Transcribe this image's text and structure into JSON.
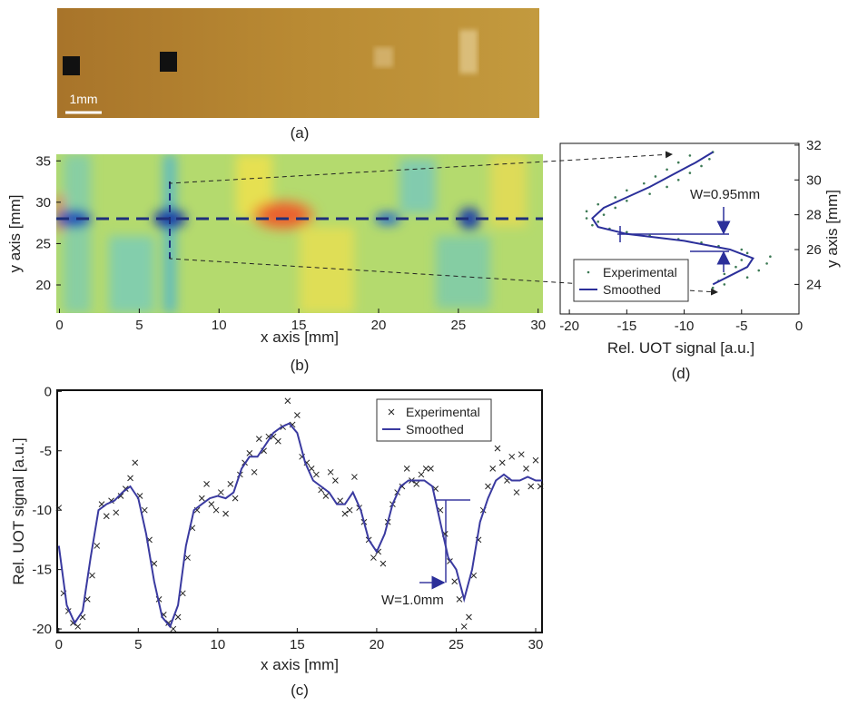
{
  "photo": {
    "scale_label": "1mm",
    "caption": "(a)"
  },
  "chart_data": [
    {
      "type": "heatmap",
      "caption": "(b)",
      "xlabel": "x axis [mm]",
      "ylabel": "y axis [mm]",
      "xlim": [
        -0.2,
        30.3
      ],
      "xticks": [
        0,
        5,
        10,
        15,
        20,
        25,
        30
      ],
      "ylim": [
        16.6,
        35.8
      ],
      "yticks": [
        20,
        25,
        30,
        35
      ]
    },
    {
      "type": "line",
      "orientation": "horizontal",
      "caption": "(d)",
      "xlabel": "Rel. UOT signal [a.u.]",
      "ylabel": "y axis [mm]",
      "annotation": "W=0.95mm",
      "legend": "lower left",
      "xlim": [
        -20.8,
        0
      ],
      "xticks": [
        -20,
        -15,
        -10,
        -5,
        0
      ],
      "ylim": [
        22.3,
        32.1
      ],
      "yticks": [
        24,
        26,
        28,
        30,
        32
      ],
      "series": [
        {
          "name": "Experimental",
          "color": "#3d7a55",
          "mode": "markers",
          "marker": "dot",
          "y": [
            31.6,
            31.4,
            31.2,
            31.0,
            30.8,
            30.6,
            30.4,
            30.2,
            30.0,
            29.8,
            29.6,
            29.4,
            29.2,
            29.0,
            28.8,
            28.6,
            28.4,
            28.2,
            28.0,
            27.8,
            27.6,
            27.4,
            27.2,
            27.0,
            26.8,
            26.6,
            26.4,
            26.2,
            26.0,
            25.8,
            25.6,
            25.4,
            25.2,
            25.0,
            24.8,
            24.6,
            24.4,
            24.2,
            24.0,
            23.8
          ],
          "values": [
            -7.5,
            -9.5,
            -7.8,
            -10.5,
            -8.5,
            -11.5,
            -9.5,
            -12.5,
            -10.5,
            -13.5,
            -11.5,
            -15,
            -13,
            -16,
            -15,
            -17.5,
            -16,
            -18.5,
            -17,
            -18.5,
            -17.5,
            -18,
            -16.5,
            -15,
            -13,
            -10.5,
            -8.5,
            -7,
            -5,
            -4.5,
            -2.5,
            -5,
            -2.8,
            -5.5,
            -3.5,
            -6.5,
            -4.5,
            -7,
            -6.5,
            -7.5
          ]
        },
        {
          "name": "Smoothed",
          "color": "#2b2f9a",
          "mode": "line",
          "y": [
            31.6,
            31,
            30.3,
            29.6,
            29,
            28.4,
            27.8,
            27.3,
            26.9,
            26.5,
            26,
            25.5,
            25,
            24.5,
            24
          ],
          "values": [
            -7.5,
            -9,
            -11,
            -13,
            -15,
            -17,
            -18,
            -17.5,
            -15,
            -10,
            -6,
            -4,
            -4.5,
            -6,
            -7.5
          ]
        }
      ]
    },
    {
      "type": "line",
      "caption": "(c)",
      "xlabel": "x axis [mm]",
      "ylabel": "Rel. UOT signal [a.u.]",
      "annotation": "W=1.0mm",
      "legend": "upper right",
      "xlim": [
        -0.1,
        30.4
      ],
      "xticks": [
        0,
        5,
        10,
        15,
        20,
        25,
        30
      ],
      "ylim": [
        -20.3,
        0.1
      ],
      "yticks": [
        -20,
        -15,
        -10,
        -5,
        0
      ],
      "series": [
        {
          "name": "Experimental",
          "color": "#222222",
          "mode": "markers",
          "marker": "cross",
          "x": [
            0,
            0.3,
            0.6,
            0.9,
            1.2,
            1.5,
            1.8,
            2.1,
            2.4,
            2.7,
            3,
            3.3,
            3.6,
            3.9,
            4.2,
            4.5,
            4.8,
            5.1,
            5.4,
            5.7,
            6,
            6.3,
            6.6,
            6.9,
            7.2,
            7.5,
            7.8,
            8.1,
            8.4,
            8.7,
            9,
            9.3,
            9.6,
            9.9,
            10.2,
            10.5,
            10.8,
            11.1,
            11.4,
            11.7,
            12,
            12.3,
            12.6,
            12.9,
            13.2,
            13.5,
            13.8,
            14.1,
            14.4,
            14.7,
            15,
            15.3,
            15.6,
            15.9,
            16.2,
            16.5,
            16.8,
            17.1,
            17.4,
            17.7,
            18,
            18.3,
            18.6,
            18.9,
            19.2,
            19.5,
            19.8,
            20.1,
            20.4,
            20.7,
            21,
            21.3,
            21.6,
            21.9,
            22.2,
            22.5,
            22.8,
            23.1,
            23.4,
            23.7,
            24,
            24.3,
            24.6,
            24.9,
            25.2,
            25.5,
            25.8,
            26.1,
            26.4,
            26.7,
            27,
            27.3,
            27.6,
            27.9,
            28.2,
            28.5,
            28.8,
            29.1,
            29.4,
            29.7,
            30,
            30.3
          ],
          "values": [
            -9.8,
            -17,
            -18.5,
            -19.5,
            -19.8,
            -19,
            -17.5,
            -15.5,
            -13,
            -9.5,
            -10.5,
            -9.2,
            -10.2,
            -8.8,
            -8.2,
            -7.3,
            -6,
            -8.8,
            -10,
            -12.5,
            -14.5,
            -17.5,
            -18.8,
            -19.5,
            -20,
            -19,
            -17,
            -14,
            -11.5,
            -10,
            -9,
            -7.8,
            -9.5,
            -10,
            -8.5,
            -10.3,
            -7.8,
            -9,
            -7,
            -6,
            -5.2,
            -6.8,
            -4,
            -5,
            -3.8,
            -3.8,
            -4.2,
            -3,
            -0.8,
            -2.8,
            -2,
            -5.5,
            -6,
            -6.5,
            -7,
            -8.3,
            -8.8,
            -6.8,
            -7.5,
            -9.2,
            -10.3,
            -10,
            -7.2,
            -9.8,
            -11,
            -12.5,
            -14,
            -13.5,
            -14.5,
            -11,
            -9.5,
            -8.5,
            -8,
            -6.5,
            -7.5,
            -7.8,
            -7,
            -6.5,
            -6.5,
            -8.2,
            -10,
            -12,
            -14.3,
            -16,
            -17.5,
            -19.8,
            -19,
            -15.5,
            -12.5,
            -10,
            -8,
            -6.5,
            -4.8,
            -6,
            -7.5,
            -5.5,
            -8.5,
            -5.3,
            -6.5,
            -8,
            -5.8,
            -8
          ]
        },
        {
          "name": "Smoothed",
          "color": "#3a3aa0",
          "mode": "line",
          "x": [
            0,
            0.5,
            1,
            1.5,
            2,
            2.5,
            3,
            3.5,
            4,
            4.5,
            5,
            5.5,
            6,
            6.5,
            7,
            7.5,
            8,
            8.5,
            9,
            9.5,
            10,
            10.5,
            11,
            11.5,
            12,
            12.5,
            13,
            13.5,
            14,
            14.5,
            15,
            15.5,
            16,
            16.5,
            17,
            17.5,
            18,
            18.5,
            19,
            19.5,
            20,
            20.5,
            21,
            21.5,
            22,
            22.5,
            23,
            23.5,
            24,
            24.5,
            25,
            25.5,
            26,
            26.5,
            27,
            27.5,
            28,
            28.5,
            29,
            29.5,
            30,
            30.4
          ],
          "values": [
            -13,
            -18,
            -19.5,
            -18.5,
            -14,
            -10,
            -9.5,
            -9.2,
            -8.5,
            -8,
            -9,
            -12,
            -16,
            -19,
            -19.8,
            -18,
            -13,
            -10,
            -9.5,
            -9,
            -8.8,
            -9,
            -8.5,
            -6.5,
            -5.5,
            -5.5,
            -4.5,
            -3.5,
            -3,
            -2.7,
            -3.5,
            -6,
            -7.5,
            -8,
            -8.5,
            -9.5,
            -9.5,
            -8.5,
            -10,
            -12.5,
            -13.5,
            -12,
            -9.5,
            -8,
            -7.5,
            -7.5,
            -7.5,
            -8,
            -11,
            -14,
            -15,
            -17.5,
            -15,
            -11,
            -9,
            -7.5,
            -7,
            -7.5,
            -7.5,
            -7.2,
            -7.5,
            -7.5
          ]
        }
      ]
    }
  ]
}
